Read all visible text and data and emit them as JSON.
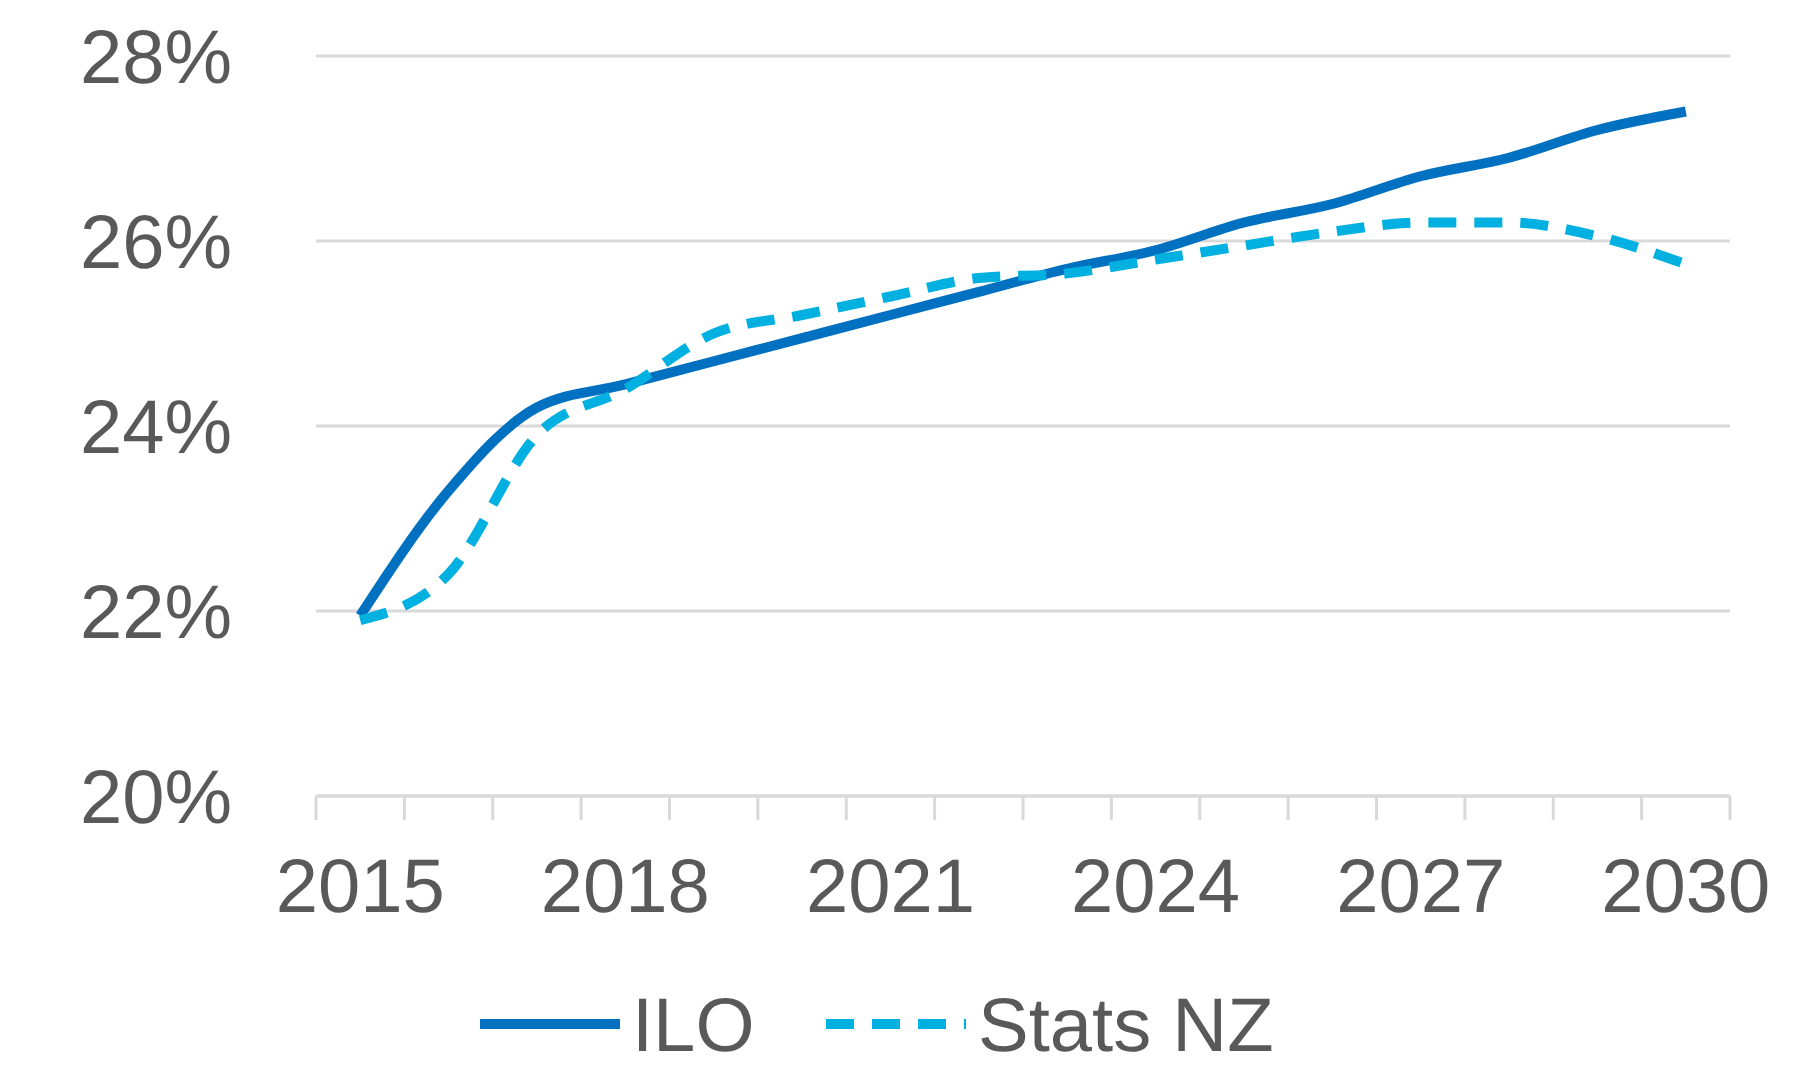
{
  "chart_data": {
    "type": "line",
    "x": [
      2015,
      2016,
      2017,
      2018,
      2019,
      2020,
      2021,
      2022,
      2023,
      2024,
      2025,
      2026,
      2027,
      2028,
      2029,
      2030
    ],
    "series": [
      {
        "name": "ILO",
        "color": "#0070c0",
        "line_style": "solid",
        "values": [
          21.95,
          23.3,
          24.2,
          24.45,
          24.7,
          24.95,
          25.2,
          25.45,
          25.7,
          25.9,
          26.2,
          26.4,
          26.7,
          26.9,
          27.2,
          27.4
        ]
      },
      {
        "name": "Stats NZ",
        "color": "#00b0e0",
        "line_style": "dashed",
        "values": [
          21.9,
          22.4,
          23.9,
          24.4,
          25.0,
          25.2,
          25.4,
          25.6,
          25.65,
          25.8,
          25.95,
          26.1,
          26.2,
          26.2,
          26.05,
          25.75
        ]
      }
    ],
    "xlim": [
      2014.5,
      2030.5
    ],
    "xticks": [
      {
        "value": 2014.5,
        "label": null
      },
      {
        "value": 2015.5,
        "label": null
      },
      {
        "value": 2016.5,
        "label": null
      },
      {
        "value": 2017.5,
        "label": null
      },
      {
        "value": 2018.5,
        "label": null
      },
      {
        "value": 2019.5,
        "label": null
      },
      {
        "value": 2020.5,
        "label": null
      },
      {
        "value": 2021.5,
        "label": null
      },
      {
        "value": 2022.5,
        "label": null
      },
      {
        "value": 2023.5,
        "label": null
      },
      {
        "value": 2024.5,
        "label": null
      },
      {
        "value": 2025.5,
        "label": null
      },
      {
        "value": 2026.5,
        "label": null
      },
      {
        "value": 2027.5,
        "label": null
      },
      {
        "value": 2028.5,
        "label": null
      },
      {
        "value": 2029.5,
        "label": null
      },
      {
        "value": 2030.5,
        "label": null
      },
      2015,
      2018,
      2021,
      2024,
      2027,
      2030
    ],
    "ylim": [
      20,
      28
    ],
    "yticks": [
      {
        "value": 20,
        "label": "20%"
      },
      {
        "value": 22,
        "label": "22%"
      },
      {
        "value": 24,
        "label": "24%"
      },
      {
        "value": 26,
        "label": "26%"
      },
      {
        "value": 28,
        "label": "28%"
      }
    ],
    "grid": "y",
    "legend": "bottom",
    "marker": "none"
  }
}
